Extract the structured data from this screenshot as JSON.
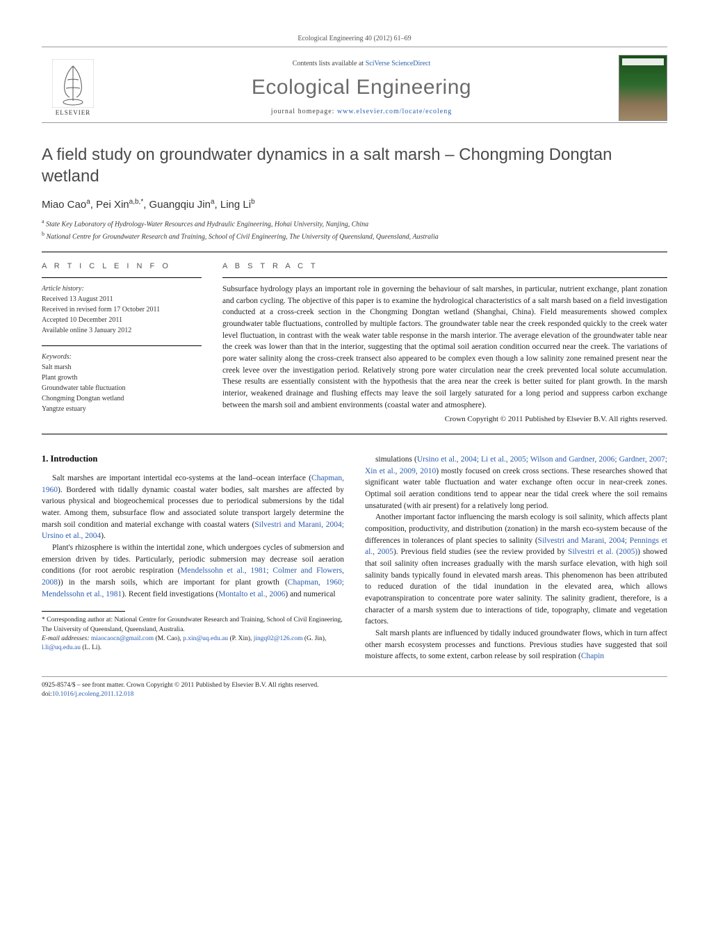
{
  "journal_ref": "Ecological Engineering 40 (2012) 61–69",
  "banner": {
    "contents_prefix": "Contents lists available at ",
    "contents_link": "SciVerse ScienceDirect",
    "journal_name": "Ecological Engineering",
    "homepage_prefix": "journal homepage: ",
    "homepage_url": "www.elsevier.com/locate/ecoleng",
    "publisher": "ELSEVIER"
  },
  "article": {
    "title": "A field study on groundwater dynamics in a salt marsh – Chongming Dongtan wetland",
    "authors_html": "Miao Cao<sup>a</sup>, Pei Xin<sup>a,b,*</sup>, Guangqiu Jin<sup>a</sup>, Ling Li<sup>b</sup>",
    "affiliations": [
      {
        "sup": "a",
        "text": "State Key Laboratory of Hydrology-Water Resources and Hydraulic Engineering, Hohai University, Nanjing, China"
      },
      {
        "sup": "b",
        "text": "National Centre for Groundwater Research and Training, School of Civil Engineering, The University of Queensland, Queensland, Australia"
      }
    ]
  },
  "article_info": {
    "label": "A R T I C L E   I N F O",
    "history_label": "Article history:",
    "received": "Received 13 August 2011",
    "revised": "Received in revised form 17 October 2011",
    "accepted": "Accepted 10 December 2011",
    "online": "Available online 3 January 2012",
    "keywords_label": "Keywords:",
    "keywords": [
      "Salt marsh",
      "Plant growth",
      "Groundwater table fluctuation",
      "Chongming Dongtan wetland",
      "Yangtze estuary"
    ]
  },
  "abstract": {
    "label": "A B S T R A C T",
    "text": "Subsurface hydrology plays an important role in governing the behaviour of salt marshes, in particular, nutrient exchange, plant zonation and carbon cycling. The objective of this paper is to examine the hydrological characteristics of a salt marsh based on a field investigation conducted at a cross-creek section in the Chongming Dongtan wetland (Shanghai, China). Field measurements showed complex groundwater table fluctuations, controlled by multiple factors. The groundwater table near the creek responded quickly to the creek water level fluctuation, in contrast with the weak water table response in the marsh interior. The average elevation of the groundwater table near the creek was lower than that in the interior, suggesting that the optimal soil aeration condition occurred near the creek. The variations of pore water salinity along the cross-creek transect also appeared to be complex even though a low salinity zone remained present near the creek levee over the investigation period. Relatively strong pore water circulation near the creek prevented local solute accumulation. These results are essentially consistent with the hypothesis that the area near the creek is better suited for plant growth. In the marsh interior, weakened drainage and flushing effects may leave the soil largely saturated for a long period and suppress carbon exchange between the marsh soil and ambient environments (coastal water and atmosphere).",
    "copyright": "Crown Copyright © 2011 Published by Elsevier B.V. All rights reserved."
  },
  "body": {
    "heading": "1.  Introduction",
    "left_col_paragraphs": [
      "Salt marshes are important intertidal eco-systems at the land–ocean interface (<span class=\"ref-link\">Chapman, 1960</span>). Bordered with tidally dynamic coastal water bodies, salt marshes are affected by various physical and biogeochemical processes due to periodical submersions by the tidal water. Among them, subsurface flow and associated solute transport largely determine the marsh soil condition and material exchange with coastal waters (<span class=\"ref-link\">Silvestri and Marani, 2004; Ursino et al., 2004</span>).",
      "Plant's rhizosphere is within the intertidal zone, which undergoes cycles of submersion and emersion driven by tides. Particularly, periodic submersion may decrease soil aeration conditions (for root aerobic respiration (<span class=\"ref-link\">Mendelssohn et al., 1981; Colmer and Flowers, 2008</span>)) in the marsh soils, which are important for plant growth (<span class=\"ref-link\">Chapman, 1960; Mendelssohn et al., 1981</span>). Recent field investigations (<span class=\"ref-link\">Montalto et al., 2006</span>) and numerical"
    ],
    "right_col_paragraphs": [
      "simulations (<span class=\"ref-link\">Ursino et al., 2004; Li et al., 2005; Wilson and Gardner, 2006; Gardner, 2007; Xin et al., 2009, 2010</span>) mostly focused on creek cross sections. These researches showed that significant water table fluctuation and water exchange often occur in near-creek zones. Optimal soil aeration conditions tend to appear near the tidal creek where the soil remains unsaturated (with air present) for a relatively long period.",
      "Another important factor influencing the marsh ecology is soil salinity, which affects plant composition, productivity, and distribution (zonation) in the marsh eco-system because of the differences in tolerances of plant species to salinity (<span class=\"ref-link\">Silvestri and Marani, 2004; Pennings et al., 2005</span>). Previous field studies (see the review provided by <span class=\"ref-link\">Silvestri et al. (2005)</span>) showed that soil salinity often increases gradually with the marsh surface elevation, with high soil salinity bands typically found in elevated marsh areas. This phenomenon has been attributed to reduced duration of the tidal inundation in the elevated area, which allows evapotranspiration to concentrate pore water salinity. The salinity gradient, therefore, is a character of a marsh system due to interactions of tide, topography, climate and vegetation factors.",
      "Salt marsh plants are influenced by tidally induced groundwater flows, which in turn affect other marsh ecosystem processes and functions. Previous studies have suggested that soil moisture affects, to some extent, carbon release by soil respiration (<span class=\"ref-link\">Chapin</span>"
    ]
  },
  "footnotes": {
    "corresp": "* Corresponding author at: National Centre for Groundwater Research and Training, School of Civil Engineering, The University of Queensland, Queensland, Australia.",
    "email_label": "E-mail addresses:",
    "emails": [
      {
        "addr": "miaocaocn@gmail.com",
        "who": "(M. Cao)"
      },
      {
        "addr": "p.xin@uq.edu.au",
        "who": "(P. Xin)"
      },
      {
        "addr": "jingq02@126.com",
        "who": "(G. Jin)"
      },
      {
        "addr": "l.li@uq.edu.au",
        "who": "(L. Li)"
      }
    ]
  },
  "footer": {
    "issn_line": "0925-8574/$ – see front matter. Crown Copyright © 2011 Published by Elsevier B.V. All rights reserved.",
    "doi_prefix": "doi:",
    "doi": "10.1016/j.ecoleng.2011.12.018"
  },
  "colors": {
    "link": "#2a5db0",
    "heading_gray": "#4a4a4a",
    "journal_gray": "#6b6b6b",
    "text": "#222222",
    "rule": "#000000"
  }
}
